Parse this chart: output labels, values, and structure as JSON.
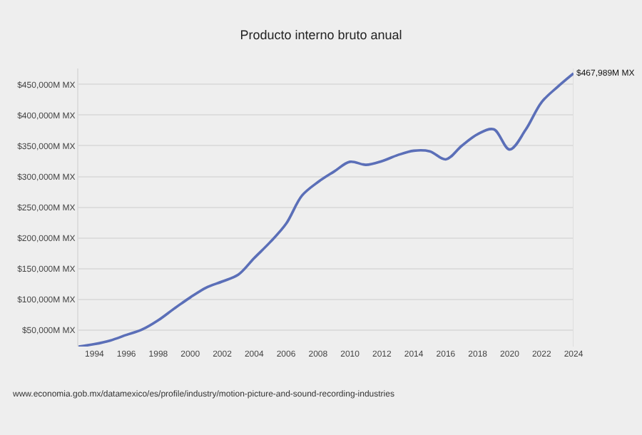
{
  "chart_data": {
    "type": "line",
    "title": "Producto interno bruto anual",
    "x": [
      1993,
      1994,
      1995,
      1996,
      1997,
      1998,
      1999,
      2000,
      2001,
      2002,
      2003,
      2004,
      2005,
      2006,
      2007,
      2008,
      2009,
      2010,
      2011,
      2012,
      2013,
      2014,
      2015,
      2016,
      2017,
      2018,
      2019,
      2020,
      2021,
      2022,
      2023,
      2024
    ],
    "series": [
      {
        "color": "#5b6fb8",
        "values": [
          23000,
          27000,
          33000,
          42000,
          51000,
          66000,
          85000,
          103000,
          119000,
          129000,
          140000,
          167000,
          193000,
          223000,
          269000,
          291000,
          308000,
          324000,
          319000,
          325000,
          335000,
          342000,
          341000,
          328000,
          350000,
          369000,
          377000,
          344000,
          376000,
          421000,
          446000,
          467989
        ]
      }
    ],
    "xlim": [
      1993,
      2024
    ],
    "xticks": [
      1994,
      1996,
      1998,
      2000,
      2002,
      2004,
      2006,
      2008,
      2010,
      2012,
      2014,
      2016,
      2018,
      2020,
      2022,
      2024
    ],
    "ylim": [
      23000,
      476000
    ],
    "yticks": [
      {
        "value": 50000,
        "label": "$50,000M MX"
      },
      {
        "value": 100000,
        "label": "$100,000M MX"
      },
      {
        "value": 150000,
        "label": "$150,000M MX"
      },
      {
        "value": 200000,
        "label": "$200,000M MX"
      },
      {
        "value": 250000,
        "label": "$250,000M MX"
      },
      {
        "value": 300000,
        "label": "$300,000M MX"
      },
      {
        "value": 350000,
        "label": "$350,000M MX"
      },
      {
        "value": 400000,
        "label": "$400,000M MX"
      },
      {
        "value": 450000,
        "label": "$450,000M MX"
      }
    ],
    "grid": "y",
    "legend": false,
    "annotations": [
      {
        "text": "$467,989M MX",
        "x": 2024,
        "y": 467989
      },
      "www.economia.gob.mx/datamexico/es/profile/industry/motion-picture-and-sound-recording-industries"
    ]
  }
}
